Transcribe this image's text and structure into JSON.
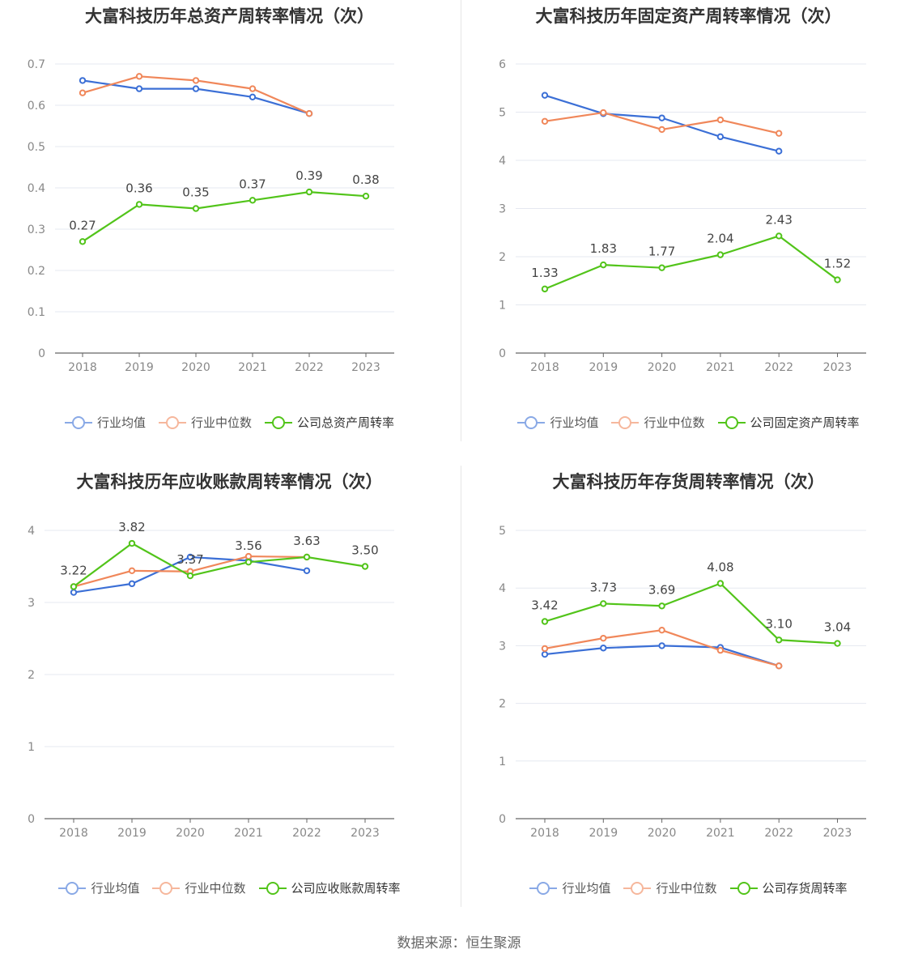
{
  "colors": {
    "company": "#52c41a",
    "avg": "#3b6fd6",
    "median": "#f0875a"
  },
  "source": "数据来源：恒生聚源",
  "chart_data": [
    {
      "type": "line",
      "title": "大富科技历年总资产周转率情况（次）",
      "categories": [
        "2018",
        "2019",
        "2020",
        "2021",
        "2022",
        "2023"
      ],
      "ylim": [
        0,
        0.7
      ],
      "yticks": [
        "0",
        "0.1",
        "0.2",
        "0.3",
        "0.4",
        "0.5",
        "0.6",
        "0.7"
      ],
      "grid": true,
      "legend_position": "bottom",
      "series": [
        {
          "name": "公司总资产周转率",
          "role": "company",
          "values": [
            0.27,
            0.36,
            0.35,
            0.37,
            0.39,
            0.38
          ],
          "labels": [
            "0.27",
            "0.36",
            "0.35",
            "0.37",
            "0.39",
            "0.38"
          ]
        },
        {
          "name": "行业均值",
          "role": "avg",
          "values": [
            0.66,
            0.64,
            0.64,
            0.62,
            0.58,
            null
          ]
        },
        {
          "name": "行业中位数",
          "role": "median",
          "values": [
            0.63,
            0.67,
            0.66,
            0.64,
            0.58,
            null
          ]
        }
      ]
    },
    {
      "type": "line",
      "title": "大富科技历年固定资产周转率情况（次）",
      "categories": [
        "2018",
        "2019",
        "2020",
        "2021",
        "2022",
        "2023"
      ],
      "ylim": [
        0,
        6
      ],
      "yticks": [
        "0",
        "1",
        "2",
        "3",
        "4",
        "5",
        "6"
      ],
      "grid": true,
      "legend_position": "bottom",
      "series": [
        {
          "name": "公司固定资产周转率",
          "role": "company",
          "values": [
            1.33,
            1.83,
            1.77,
            2.04,
            2.43,
            1.52
          ],
          "labels": [
            "1.33",
            "1.83",
            "1.77",
            "2.04",
            "2.43",
            "1.52"
          ]
        },
        {
          "name": "行业均值",
          "role": "avg",
          "values": [
            5.35,
            4.97,
            4.88,
            4.49,
            4.19,
            null
          ]
        },
        {
          "name": "行业中位数",
          "role": "median",
          "values": [
            4.81,
            4.99,
            4.64,
            4.84,
            4.56,
            null
          ]
        }
      ]
    },
    {
      "type": "line",
      "title": "大富科技历年应收账款周转率情况（次）",
      "categories": [
        "2018",
        "2019",
        "2020",
        "2021",
        "2022",
        "2023"
      ],
      "ylim": [
        0,
        4
      ],
      "yticks": [
        "0",
        "1",
        "2",
        "3",
        "4"
      ],
      "grid": true,
      "legend_position": "bottom",
      "series": [
        {
          "name": "公司应收账款周转率",
          "role": "company",
          "values": [
            3.22,
            3.82,
            3.37,
            3.56,
            3.63,
            3.5
          ],
          "labels": [
            "3.22",
            "3.82",
            "3.37",
            "3.56",
            "3.63",
            "3.50"
          ]
        },
        {
          "name": "行业均值",
          "role": "avg",
          "values": [
            3.14,
            3.26,
            3.63,
            3.58,
            3.44,
            null
          ]
        },
        {
          "name": "行业中位数",
          "role": "median",
          "values": [
            3.22,
            3.44,
            3.43,
            3.64,
            3.63,
            null
          ]
        }
      ]
    },
    {
      "type": "line",
      "title": "大富科技历年存货周转率情况（次）",
      "categories": [
        "2018",
        "2019",
        "2020",
        "2021",
        "2022",
        "2023"
      ],
      "ylim": [
        0,
        5
      ],
      "yticks": [
        "0",
        "1",
        "2",
        "3",
        "4",
        "5"
      ],
      "grid": true,
      "legend_position": "bottom",
      "series": [
        {
          "name": "公司存货周转率",
          "role": "company",
          "values": [
            3.42,
            3.73,
            3.69,
            4.08,
            3.1,
            3.04
          ],
          "labels": [
            "3.42",
            "3.73",
            "3.69",
            "4.08",
            "3.10",
            "3.04"
          ]
        },
        {
          "name": "行业均值",
          "role": "avg",
          "values": [
            2.85,
            2.96,
            3.0,
            2.97,
            2.65,
            null
          ]
        },
        {
          "name": "行业中位数",
          "role": "median",
          "values": [
            2.95,
            3.13,
            3.27,
            2.92,
            2.65,
            null
          ]
        }
      ]
    }
  ]
}
